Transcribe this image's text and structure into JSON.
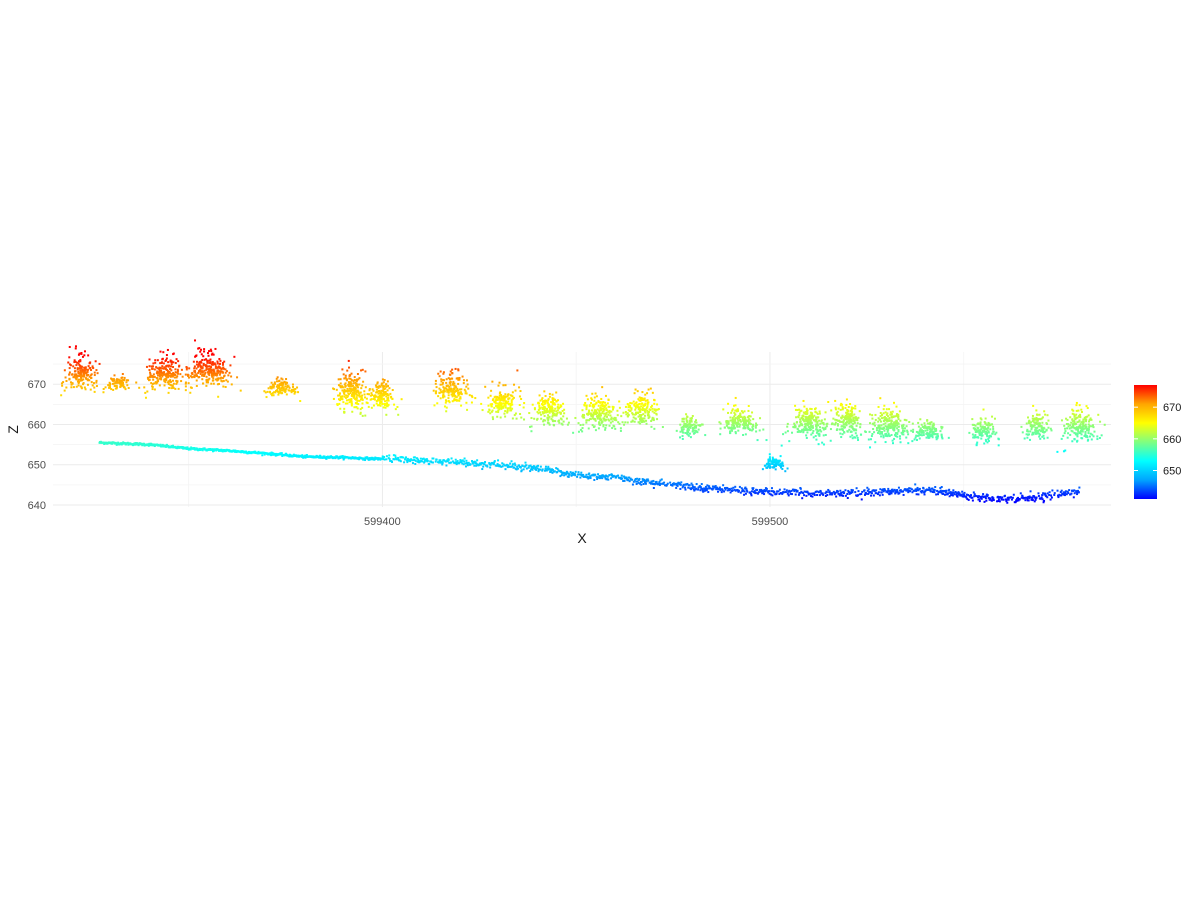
{
  "chart_data": {
    "type": "scatter",
    "title": "",
    "xlabel": "X",
    "ylabel": "Z",
    "xlim": [
      599315,
      599588
    ],
    "ylim": [
      639.5,
      678
    ],
    "x_ticks": [
      599400,
      599500
    ],
    "x_tick_labels": [
      "599400",
      "599500"
    ],
    "y_ticks": [
      640,
      650,
      660,
      670
    ],
    "y_tick_labels": [
      "640",
      "650",
      "660",
      "670"
    ],
    "grid": true,
    "colorbar": {
      "variable": "Z",
      "range": [
        641,
        677
      ],
      "ticks": [
        650,
        660,
        670
      ],
      "tick_labels": [
        "650",
        "660",
        "670"
      ],
      "colors": [
        "#0000FF",
        "#00A5FF",
        "#00FFFF",
        "#80FF80",
        "#FFFF00",
        "#FFA500",
        "#FF0000"
      ],
      "placement": "right"
    },
    "ground_profile": {
      "x": [
        599327,
        599340,
        599350,
        599360,
        599370,
        599380,
        599390,
        599397,
        599403,
        599410,
        599420,
        599430,
        599440,
        599450,
        599460,
        599470,
        599480,
        599490,
        599500,
        599510,
        599520,
        599530,
        599540,
        599550,
        599560,
        599570,
        599580
      ],
      "z": [
        655.5,
        655,
        654,
        653.5,
        652.8,
        652,
        651.8,
        651.5,
        651.5,
        651,
        650.5,
        650,
        649,
        647.5,
        646.8,
        645.5,
        644.5,
        643.8,
        643.2,
        643,
        643,
        643.2,
        643.8,
        642.5,
        641.5,
        642,
        643.5
      ]
    },
    "canopy_clusters": [
      {
        "x": 599322,
        "z": 672,
        "xspread": 4,
        "zspread": 5
      },
      {
        "x": 599332,
        "z": 670,
        "xspread": 3,
        "zspread": 2
      },
      {
        "x": 599344,
        "z": 672,
        "xspread": 5,
        "zspread": 5
      },
      {
        "x": 599355,
        "z": 673,
        "xspread": 6,
        "zspread": 5
      },
      {
        "x": 599374,
        "z": 669,
        "xspread": 4,
        "zspread": 2.5
      },
      {
        "x": 599392,
        "z": 667,
        "xspread": 4,
        "zspread": 6
      },
      {
        "x": 599400,
        "z": 666,
        "xspread": 3,
        "zspread": 5
      },
      {
        "x": 599418,
        "z": 668,
        "xspread": 4,
        "zspread": 5
      },
      {
        "x": 599431,
        "z": 665,
        "xspread": 4,
        "zspread": 4.5
      },
      {
        "x": 599443,
        "z": 663,
        "xspread": 4,
        "zspread": 5
      },
      {
        "x": 599456,
        "z": 662,
        "xspread": 5,
        "zspread": 5
      },
      {
        "x": 599467,
        "z": 663,
        "xspread": 4,
        "zspread": 5
      },
      {
        "x": 599479,
        "z": 659,
        "xspread": 3,
        "zspread": 3
      },
      {
        "x": 599492,
        "z": 660,
        "xspread": 5,
        "zspread": 4
      },
      {
        "x": 599510,
        "z": 660,
        "xspread": 5,
        "zspread": 5
      },
      {
        "x": 599520,
        "z": 660,
        "xspread": 4,
        "zspread": 5
      },
      {
        "x": 599531,
        "z": 659,
        "xspread": 5,
        "zspread": 5
      },
      {
        "x": 599541,
        "z": 658,
        "xspread": 4,
        "zspread": 3
      },
      {
        "x": 599555,
        "z": 658,
        "xspread": 3,
        "zspread": 4
      },
      {
        "x": 599569,
        "z": 659,
        "xspread": 3,
        "zspread": 4
      },
      {
        "x": 599580,
        "z": 659,
        "xspread": 4,
        "zspread": 5
      },
      {
        "x": 599501,
        "z": 650,
        "xspread": 3,
        "zspread": 2
      }
    ]
  }
}
